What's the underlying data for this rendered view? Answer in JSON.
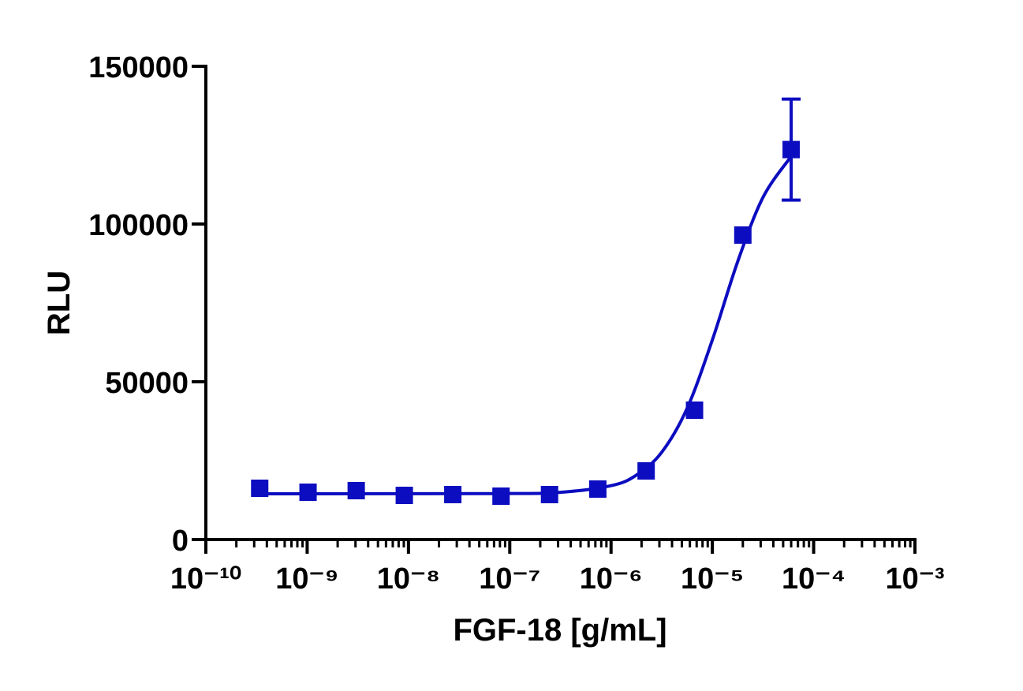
{
  "chart_data": {
    "type": "scatter",
    "x_label": "FGF-18 [g/mL]",
    "y_label": "RLU",
    "x_log": true,
    "xlim": [
      1e-10,
      0.001
    ],
    "xticks": [
      {
        "value": 1e-10,
        "label": "10⁻¹⁰"
      },
      {
        "value": 1e-09,
        "label": "10⁻⁹"
      },
      {
        "value": 1e-08,
        "label": "10⁻⁸"
      },
      {
        "value": 1e-07,
        "label": "10⁻⁷"
      },
      {
        "value": 1e-06,
        "label": "10⁻⁶"
      },
      {
        "value": 1e-05,
        "label": "10⁻⁵"
      },
      {
        "value": 0.0001,
        "label": "10⁻⁴"
      },
      {
        "value": 0.001,
        "label": "10⁻³"
      }
    ],
    "ylim": [
      0,
      150000
    ],
    "yticks": [
      0,
      50000,
      100000,
      150000
    ],
    "color": "#0c0cc0",
    "x": [
      3.4e-10,
      1.02e-09,
      3.05e-09,
      9.1e-09,
      2.74e-08,
      8.2e-08,
      2.47e-07,
      7.4e-07,
      2.22e-06,
      6.67e-06,
      2e-05,
      6e-05
    ],
    "values": [
      16250,
      15000,
      15500,
      14000,
      14250,
      13750,
      14250,
      16000,
      21750,
      41000,
      96500,
      123600
    ],
    "errors": [
      null,
      null,
      null,
      null,
      null,
      null,
      null,
      null,
      null,
      null,
      null,
      16000
    ],
    "curve": {
      "x": [
        3.4e-10,
        1e-07,
        3.16e-07,
        1e-06,
        1.78e-06,
        3.16e-06,
        5.62e-06,
        1e-05,
        1.78e-05,
        3.16e-05,
        6e-05
      ],
      "values": [
        14500,
        14580,
        14970,
        17070,
        20430,
        27640,
        41510,
        63260,
        88120,
        108430,
        121430
      ]
    }
  }
}
